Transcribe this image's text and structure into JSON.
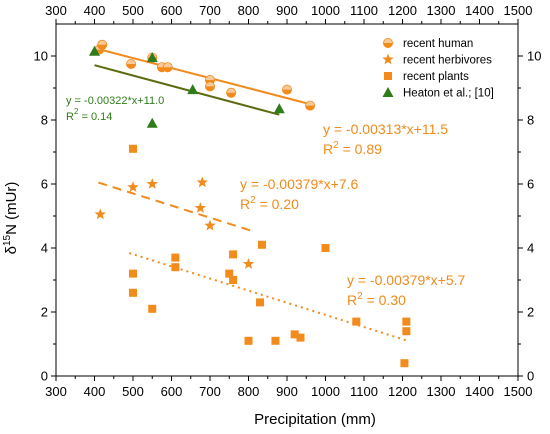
{
  "chart_data": {
    "type": "scatter",
    "title": "",
    "xlabel": "Precipitation (mm)",
    "ylabel_main": "δ",
    "ylabel_sup": "15",
    "ylabel_rest": "N (mUr)",
    "xlim": [
      300,
      1500
    ],
    "ylim": [
      0,
      11
    ],
    "xticks": [
      300,
      400,
      500,
      600,
      700,
      800,
      900,
      1000,
      1100,
      1200,
      1300,
      1400,
      1500
    ],
    "yticks": [
      0,
      2,
      4,
      6,
      8,
      10
    ],
    "grid": false,
    "legend_position": "top-right",
    "colors": {
      "orange": "#f28a1c",
      "green": "#2e7d1a",
      "dark_olive": "#5a6b10"
    },
    "series": [
      {
        "name": "recent human",
        "marker": "circle",
        "color": "#f28a1c",
        "points": [
          [
            412,
            10.2
          ],
          [
            420,
            10.35
          ],
          [
            495,
            9.75
          ],
          [
            550,
            9.95
          ],
          [
            575,
            9.65
          ],
          [
            590,
            9.65
          ],
          [
            700,
            9.25
          ],
          [
            700,
            9.05
          ],
          [
            755,
            8.85
          ],
          [
            900,
            8.95
          ],
          [
            960,
            8.45
          ]
        ]
      },
      {
        "name": "recent herbivores",
        "marker": "star",
        "color": "#f28a1c",
        "points": [
          [
            415,
            5.05
          ],
          [
            500,
            5.9
          ],
          [
            550,
            6.0
          ],
          [
            675,
            5.25
          ],
          [
            680,
            6.05
          ],
          [
            700,
            4.7
          ],
          [
            800,
            3.5
          ]
        ]
      },
      {
        "name": "recent plants",
        "marker": "square",
        "color": "#f28a1c",
        "points": [
          [
            500,
            7.1
          ],
          [
            500,
            3.2
          ],
          [
            500,
            2.6
          ],
          [
            550,
            2.1
          ],
          [
            610,
            3.7
          ],
          [
            610,
            3.4
          ],
          [
            750,
            3.2
          ],
          [
            760,
            3.8
          ],
          [
            760,
            3.0
          ],
          [
            800,
            1.1
          ],
          [
            830,
            2.3
          ],
          [
            835,
            4.1
          ],
          [
            870,
            1.1
          ],
          [
            920,
            1.3
          ],
          [
            935,
            1.2
          ],
          [
            1000,
            4.0
          ],
          [
            1080,
            1.7
          ],
          [
            1205,
            0.4
          ],
          [
            1210,
            1.4
          ],
          [
            1210,
            1.7
          ]
        ]
      },
      {
        "name": "Heaton et al.; [10]",
        "marker": "triangle",
        "color": "#2e7d1a",
        "points": [
          [
            400,
            10.15
          ],
          [
            550,
            9.95
          ],
          [
            550,
            7.9
          ],
          [
            655,
            8.95
          ],
          [
            880,
            8.35
          ]
        ]
      }
    ],
    "fits": [
      {
        "series": "recent human",
        "x0": 400,
        "x1": 970,
        "slope": -0.00313,
        "intercept": 11.5,
        "style": "solid",
        "color": "#f28a1c"
      },
      {
        "series": "recent herbivores",
        "x0": 410,
        "x1": 810,
        "slope": -0.00379,
        "intercept": 7.6,
        "style": "dashed",
        "color": "#f28a1c"
      },
      {
        "series": "recent plants",
        "x0": 490,
        "x1": 1215,
        "slope": -0.00379,
        "intercept": 5.7,
        "style": "dotted",
        "color": "#f28a1c"
      },
      {
        "series": "Heaton et al.; [10]",
        "x0": 400,
        "x1": 880,
        "slope": -0.00322,
        "intercept": 11.0,
        "style": "solid",
        "color": "#5a6b10"
      }
    ],
    "annotations": [
      {
        "id": "human",
        "line1": "y = -0.00313*x+11.5",
        "r2_prefix": "R",
        "r2_sup": "2",
        "r2_value": " = 0.89",
        "color": "#f28a1c",
        "size": "large"
      },
      {
        "id": "herb",
        "line1": "y = -0.00379*x+7.6",
        "r2_prefix": "R",
        "r2_sup": "2",
        "r2_value": " = 0.20",
        "color": "#f28a1c",
        "size": "large"
      },
      {
        "id": "plants",
        "line1": "y = -0.00379*x+5.7",
        "r2_prefix": "R",
        "r2_sup": "2",
        "r2_value": " = 0.30",
        "color": "#f28a1c",
        "size": "large"
      },
      {
        "id": "heaton",
        "line1": "y = -0.00322*x+11.0",
        "r2_prefix": "R",
        "r2_sup": "2",
        "r2_value": " = 0.14",
        "color": "#2e7d1a",
        "size": "small"
      }
    ]
  }
}
